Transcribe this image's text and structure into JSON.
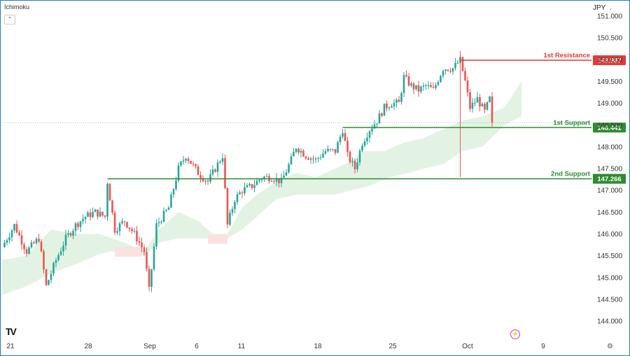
{
  "indicator": "Ichimoku",
  "currency": "JPY",
  "colors": {
    "bull": "#26a69a",
    "bear": "#ef5350",
    "support": "#2e8b2e",
    "resistance": "#e53935",
    "cloud_bull": "#e3f3e3",
    "cloud_bear": "#fbe1e1"
  },
  "chart_data": {
    "type": "candlestick",
    "ylim": [
      143.7,
      151.3
    ],
    "y_ticks": [
      "151.000",
      "150.500",
      "150.000",
      "149.500",
      "149.000",
      "148.500",
      "148.000",
      "147.500",
      "147.000",
      "146.500",
      "146.000",
      "145.500",
      "145.000",
      "144.500",
      "144.000"
    ],
    "x_ticks": [
      "21",
      "28",
      "Sep",
      "6",
      "11",
      "18",
      "25",
      "Oct",
      "9"
    ],
    "levels": [
      {
        "name": "1st Resistance",
        "value": 149.987,
        "label": "149.987",
        "color": "#e53935"
      },
      {
        "name": "1st Support",
        "value": 148.441,
        "label": "148.441",
        "color": "#2e8b2e"
      },
      {
        "name": "2nd Support",
        "value": 147.266,
        "label": "147.266",
        "color": "#2e8b2e"
      }
    ],
    "price_anchors": [
      [
        0,
        145.7
      ],
      [
        5,
        146.2
      ],
      [
        10,
        145.6
      ],
      [
        15,
        145.9
      ],
      [
        18,
        144.8
      ],
      [
        22,
        145.4
      ],
      [
        26,
        145.9
      ],
      [
        30,
        146.2
      ],
      [
        34,
        146.4
      ],
      [
        38,
        146.5
      ],
      [
        42,
        146.4
      ],
      [
        43,
        147.2
      ],
      [
        46,
        146.1
      ],
      [
        50,
        146.3
      ],
      [
        54,
        146.0
      ],
      [
        58,
        145.6
      ],
      [
        60,
        144.7
      ],
      [
        63,
        146.2
      ],
      [
        68,
        146.6
      ],
      [
        72,
        147.5
      ],
      [
        75,
        147.8
      ],
      [
        80,
        147.4
      ],
      [
        84,
        147.2
      ],
      [
        88,
        147.6
      ],
      [
        90,
        147.8
      ],
      [
        92,
        146.2
      ],
      [
        95,
        146.8
      ],
      [
        98,
        147.0
      ],
      [
        102,
        147.1
      ],
      [
        106,
        147.3
      ],
      [
        110,
        147.3
      ],
      [
        114,
        147.2
      ],
      [
        118,
        147.7
      ],
      [
        120,
        148.0
      ],
      [
        124,
        147.8
      ],
      [
        128,
        147.7
      ],
      [
        132,
        147.9
      ],
      [
        136,
        147.9
      ],
      [
        139,
        148.4
      ],
      [
        141,
        147.8
      ],
      [
        144,
        147.5
      ],
      [
        147,
        148.1
      ],
      [
        150,
        148.4
      ],
      [
        153,
        148.6
      ],
      [
        156,
        148.9
      ],
      [
        159,
        149.0
      ],
      [
        162,
        149.0
      ],
      [
        164,
        149.6
      ],
      [
        167,
        149.4
      ],
      [
        170,
        149.3
      ],
      [
        173,
        149.4
      ],
      [
        176,
        149.3
      ],
      [
        180,
        149.8
      ],
      [
        184,
        149.8
      ],
      [
        187,
        149.987
      ],
      [
        189,
        149.5
      ],
      [
        191,
        148.9
      ],
      [
        194,
        149.1
      ],
      [
        197,
        148.8
      ],
      [
        199,
        149.1
      ],
      [
        200,
        148.5
      ]
    ],
    "cloud_top": [
      [
        0,
        145.4
      ],
      [
        10,
        145.5
      ],
      [
        20,
        146.1
      ],
      [
        30,
        146.0
      ],
      [
        40,
        146.0
      ],
      [
        50,
        145.8
      ],
      [
        58,
        145.6
      ],
      [
        64,
        146.1
      ],
      [
        72,
        146.5
      ],
      [
        80,
        146.3
      ],
      [
        86,
        146.0
      ],
      [
        92,
        146.0
      ],
      [
        98,
        146.6
      ],
      [
        104,
        146.9
      ],
      [
        112,
        147.2
      ],
      [
        120,
        147.4
      ],
      [
        128,
        147.3
      ],
      [
        140,
        147.6
      ],
      [
        148,
        147.9
      ],
      [
        156,
        147.9
      ],
      [
        164,
        148.1
      ],
      [
        172,
        148.2
      ],
      [
        180,
        148.4
      ],
      [
        188,
        148.6
      ],
      [
        196,
        148.7
      ],
      [
        205,
        148.9
      ],
      [
        212,
        149.5
      ]
    ],
    "cloud_bottom": [
      [
        0,
        144.6
      ],
      [
        10,
        144.8
      ],
      [
        20,
        145.1
      ],
      [
        30,
        145.3
      ],
      [
        38,
        145.5
      ],
      [
        44,
        145.6
      ],
      [
        48,
        145.6
      ],
      [
        52,
        145.6
      ],
      [
        58,
        145.5
      ],
      [
        64,
        145.8
      ],
      [
        72,
        145.9
      ],
      [
        80,
        145.9
      ],
      [
        86,
        145.9
      ],
      [
        92,
        145.9
      ],
      [
        98,
        146.1
      ],
      [
        104,
        146.4
      ],
      [
        112,
        146.8
      ],
      [
        120,
        146.9
      ],
      [
        128,
        146.9
      ],
      [
        136,
        146.9
      ],
      [
        142,
        147.0
      ],
      [
        150,
        147.1
      ],
      [
        158,
        147.3
      ],
      [
        166,
        147.4
      ],
      [
        172,
        147.5
      ],
      [
        180,
        147.6
      ],
      [
        188,
        147.9
      ],
      [
        196,
        148.0
      ],
      [
        205,
        148.5
      ],
      [
        212,
        148.7
      ]
    ],
    "bear_cloud": [
      [
        46,
        145.7
      ],
      [
        57,
        145.5
      ],
      [
        84,
        146.0
      ],
      [
        92,
        145.8
      ]
    ]
  }
}
